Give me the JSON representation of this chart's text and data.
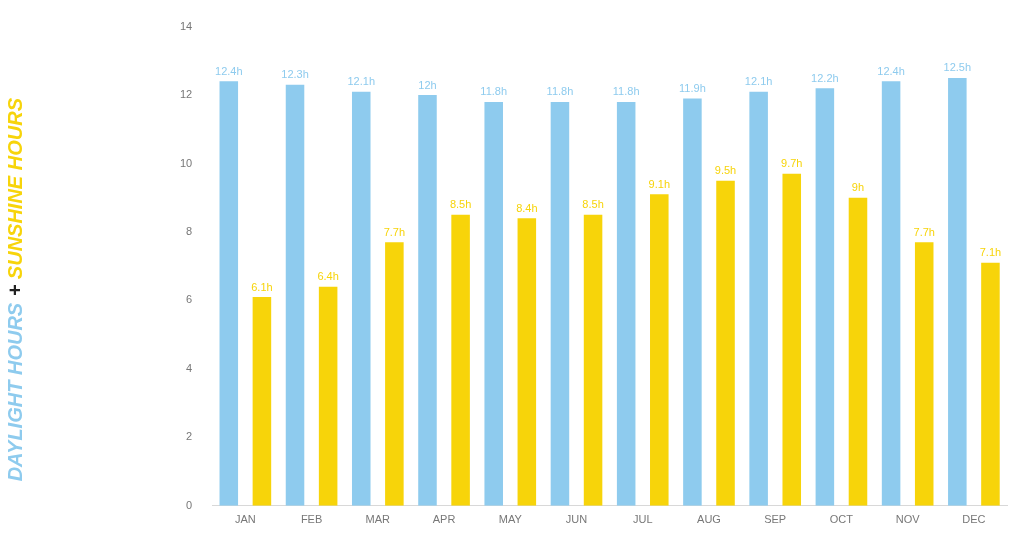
{
  "chart_data": {
    "type": "bar",
    "categories": [
      "JAN",
      "FEB",
      "MAR",
      "APR",
      "MAY",
      "JUN",
      "JUL",
      "AUG",
      "SEP",
      "OCT",
      "NOV",
      "DEC"
    ],
    "series": [
      {
        "name": "DAYLIGHT HOURS",
        "color": "#8ecbee",
        "values": [
          12.4,
          12.3,
          12.1,
          12,
          11.8,
          11.8,
          11.8,
          11.9,
          12.1,
          12.2,
          12.4,
          12.5
        ],
        "value_labels": [
          "12.4h",
          "12.3h",
          "12.1h",
          "12h",
          "11.8h",
          "11.8h",
          "11.8h",
          "11.9h",
          "12.1h",
          "12.2h",
          "12.4h",
          "12.5h"
        ]
      },
      {
        "name": "SUNSHINE HOURS",
        "color": "#f7d40a",
        "values": [
          6.1,
          6.4,
          7.7,
          8.5,
          8.4,
          8.5,
          9.1,
          9.5,
          9.7,
          9,
          7.7,
          7.1
        ],
        "value_labels": [
          "6.1h",
          "6.4h",
          "7.7h",
          "8.5h",
          "8.4h",
          "8.5h",
          "9.1h",
          "9.5h",
          "9.7h",
          "9h",
          "7.7h",
          "7.1h"
        ]
      }
    ],
    "annotations": [
      "+"
    ],
    "ylim": [
      0,
      14
    ],
    "yticks": [
      0,
      2,
      4,
      6,
      8,
      10,
      12,
      14
    ],
    "grid": false,
    "legend": "left"
  }
}
